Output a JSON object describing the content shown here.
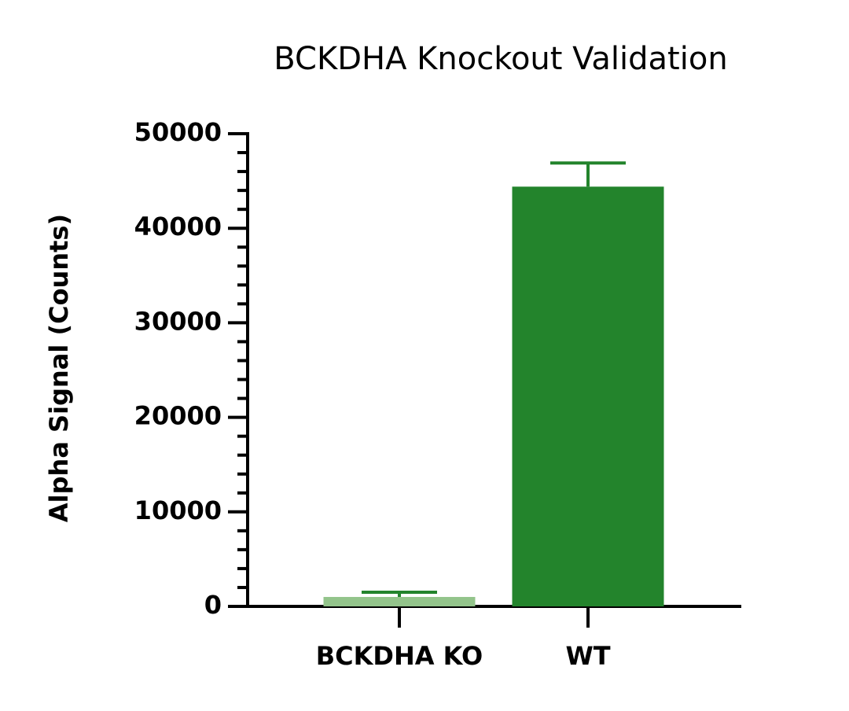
{
  "chart_data": {
    "type": "bar",
    "title": "BCKDHA Knockout Validation",
    "y_label": "Alpha Signal (Counts)",
    "categories": [
      "BCKDHA KO",
      "WT"
    ],
    "values": [
      1000,
      44400
    ],
    "errors": [
      500,
      2500
    ],
    "colors": [
      "#93c48b",
      "#23842c"
    ],
    "error_color": "#23842c",
    "ylim": [
      0,
      50000
    ],
    "yticks": [
      0,
      10000,
      20000,
      30000,
      40000,
      50000
    ],
    "minor_ticks": 4,
    "grid": false
  }
}
